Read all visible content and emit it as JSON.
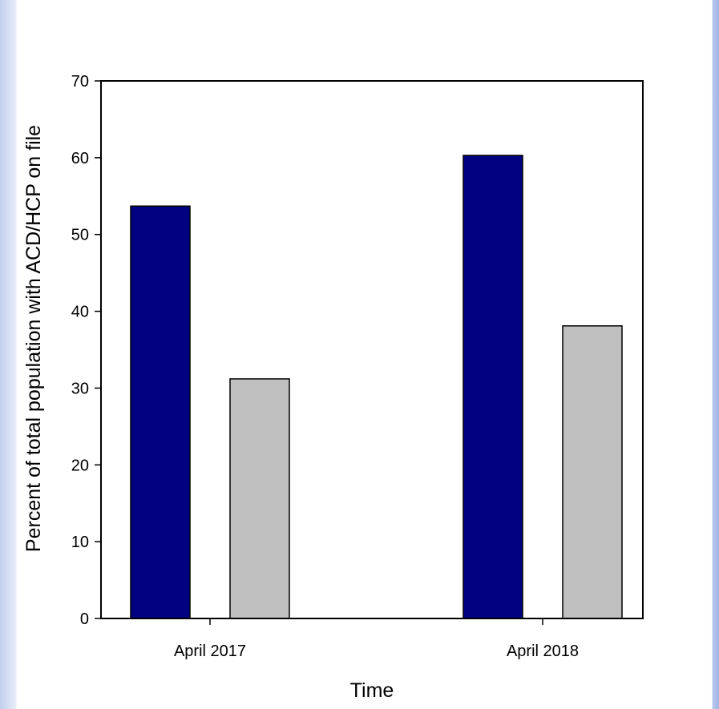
{
  "chart_data": {
    "type": "bar",
    "title": "",
    "xlabel": "Time",
    "ylabel": "Percent of total population with ACD/HCP on file",
    "categories": [
      "April 2017",
      "April 2018"
    ],
    "series": [
      {
        "color": "#000080",
        "values": [
          53.7,
          60.3
        ]
      },
      {
        "color": "#c0c0c0",
        "values": [
          31.2,
          38.1
        ]
      }
    ],
    "ylim": [
      0,
      70
    ],
    "yticks": [
      0,
      10,
      20,
      30,
      40,
      50,
      60,
      70
    ],
    "grid": false,
    "legend": "none"
  }
}
